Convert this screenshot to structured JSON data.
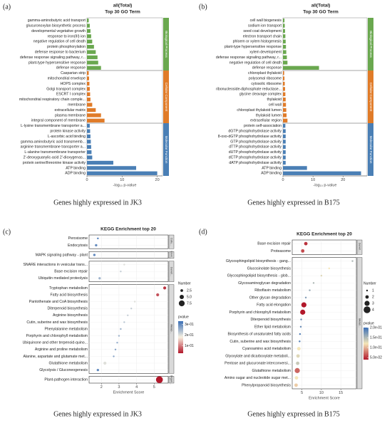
{
  "chart_data": [
    {
      "type": "bar",
      "panel_label": "(a)",
      "title": "all(Total)",
      "subtitle": "Top 30 GO Term",
      "xlabel": "-log₁₀ p-value",
      "caption": "Genes highly expressed in JK3",
      "xlim": [
        0,
        21.5
      ],
      "xticks": [
        0,
        10,
        20
      ],
      "groups": [
        {
          "label": "Biological Process",
          "color": "#6aa84f",
          "categories": [
            "gamma-aminobutyric acid transport",
            "glucuronoxylan biosynthetic process",
            "developmental vegetative growth",
            "response to iron(III) ion",
            "negative regulation of cell death",
            "protein phosphorylation",
            "defense response to bacterium",
            "defense response signaling pathway, r...",
            "plant-type hypersensitive response",
            "defense response"
          ],
          "values": [
            0.5,
            0.8,
            1.0,
            1.2,
            1.5,
            2.0,
            2.5,
            3.0,
            3.2,
            4.0
          ]
        },
        {
          "label": "Cellular Component",
          "color": "#e07b28",
          "categories": [
            "Casparian strip",
            "mitochondrial envelope",
            "HOPS complex",
            "Golgi transport complex",
            "ESCRT I complex",
            "mitochondrial respiratory chain comple...",
            "membrane",
            "extracellular matrix",
            "plasma membrane",
            "integral component of membrane"
          ],
          "values": [
            0.5,
            0.6,
            0.7,
            0.8,
            0.9,
            1.0,
            1.5,
            2.5,
            4.0,
            5.0
          ]
        },
        {
          "label": "Molecular Function",
          "color": "#4a7fb5",
          "categories": [
            "L-lysine transmembrane transporter a...",
            "protein kinase activity",
            "L-ascorbic acid binding",
            "gamma-aminobutyric acid transmemb...",
            "arginine transmembrane transporter a...",
            "L-alanine transmembrane transporter",
            "2'-deoxyguanylic-acid 2'-dioxygenas...",
            "protein serine/threonine kinase activity",
            "ATP binding",
            "ADP binding"
          ],
          "values": [
            0.8,
            0.9,
            1.0,
            1.1,
            1.2,
            1.3,
            1.5,
            7.5,
            14,
            20
          ]
        }
      ]
    },
    {
      "type": "bar",
      "panel_label": "(b)",
      "title": "all(Total)",
      "subtitle": "Top 30 GO Term",
      "xlabel": "-log₁₀ p-value",
      "caption": "Genes highly expressed in B175",
      "xlim": [
        0,
        28
      ],
      "xticks": [
        0,
        10,
        20
      ],
      "groups": [
        {
          "label": "Biological Process",
          "color": "#6aa84f",
          "categories": [
            "cell wall biogenesis",
            "sodium ion transport",
            "seed coat development",
            "electron transport chain",
            "phloem or xylem histogenesis",
            "plant-type hypersensitive response",
            "xylem development",
            "defense response signaling pathway, r...",
            "negative regulation of cell death",
            "defense response"
          ],
          "values": [
            0.5,
            0.6,
            0.7,
            0.8,
            0.9,
            1.0,
            1.1,
            1.3,
            1.5,
            12
          ]
        },
        {
          "label": "Cellular Component",
          "color": "#e07b28",
          "categories": [
            "chloroplast thylakoid",
            "polysomal ribosome",
            "cytosolic ribosome",
            "ribonucleoside-diphosphate reductase...",
            "glycine cleavage complex",
            "thylakoid",
            "cell wall",
            "chloroplast thylakoid lumen",
            "thylakoid lumen",
            "extracellular region"
          ],
          "values": [
            0.4,
            0.5,
            0.6,
            0.7,
            0.8,
            0.9,
            1.0,
            1.1,
            1.2,
            1.5
          ]
        },
        {
          "label": "Molecular Function",
          "color": "#4a7fb5",
          "categories": [
            "protein self-association",
            "dGTP phosphohydrolase activity",
            "8-oxo-dGTP phosphohydrolase activity",
            "GTP phosphohydrolase activity",
            "dTTP phosphohydrolase activity",
            "dUTP phosphohydrolase activity",
            "dCTP phosphohydrolase activity",
            "dATP phosphohydrolase activity",
            "ATP binding",
            "ADP binding"
          ],
          "values": [
            0.8,
            0.9,
            0.9,
            0.9,
            0.9,
            0.9,
            0.9,
            0.9,
            8,
            26
          ]
        }
      ]
    },
    {
      "type": "dot",
      "panel_label": "(c)",
      "title": "KEGG Enrichment top 20",
      "xlabel": "Enrichment Score",
      "caption": "Genes highly expressed in JK3",
      "xlim": [
        1.3,
        5.8
      ],
      "xticks": [
        2,
        3,
        4,
        5
      ],
      "size_legend": {
        "title": "Number",
        "lim": [
          1,
          9
        ],
        "ticks": [
          2.5,
          {
            "value": 5,
            "label": "5.0"
          },
          7.5
        ]
      },
      "colorbar": {
        "title": "pvalue",
        "lim": [
          0.03,
          0.33
        ],
        "colors": [
          "#b2182b",
          "#f7f0e0",
          "#3b6fb6"
        ],
        "ticks": [
          {
            "value": 0.3,
            "label": "3e-01"
          },
          {
            "value": 0.2,
            "label": "2e-01"
          },
          {
            "value": 0.1,
            "label": "1e-01"
          }
        ]
      },
      "facets": [
        {
          "label": "Cellu...",
          "categories": [
            "Peroxisome",
            "Endocytosis"
          ],
          "values": [
            1.8,
            1.7
          ],
          "counts": [
            1,
            2
          ],
          "pvalues": [
            0.32,
            0.3
          ]
        },
        {
          "label": "Envir...",
          "categories": [
            "MAPK signaling pathway - plant"
          ],
          "values": [
            1.6
          ],
          "counts": [
            2
          ],
          "pvalues": [
            0.3
          ]
        },
        {
          "label": "Genet...",
          "categories": [
            "SNARE interactions in vesicular trans...",
            "Base excision repair",
            "Ubiquitin mediated proteolysis"
          ],
          "values": [
            3.3,
            3.1,
            1.9
          ],
          "counts": [
            1,
            1,
            2
          ],
          "pvalues": [
            0.2,
            0.22,
            0.25
          ]
        },
        {
          "label": "Metab...",
          "categories": [
            "Tryptophan metabolism",
            "Fatty acid biosynthesis",
            "Pantothenate and CoA biosynthesis",
            "Diterpenoid biosynthesis",
            "Arginine biosynthesis",
            "Cutin, suberine and wax biosynthesis",
            "Phenylalanine metabolism",
            "Porphyrin and chlorophyll metabolism",
            "Ubiquinone and other terpenoid-quino...",
            "Arginine and proline metabolism",
            "Alanine, aspartate and glutamate met...",
            "Glutathione metabolism",
            "Glycolysis / Gluconeogenesis"
          ],
          "values": [
            5.6,
            5.2,
            3.9,
            3.7,
            3.5,
            3.3,
            3.1,
            3.0,
            2.9,
            2.8,
            2.7,
            2.2,
            1.8
          ],
          "counts": [
            3,
            3,
            1,
            1,
            1,
            1,
            1,
            1,
            1,
            1,
            1,
            3,
            2
          ],
          "pvalues": [
            0.05,
            0.07,
            0.2,
            0.22,
            0.22,
            0.23,
            0.25,
            0.25,
            0.26,
            0.27,
            0.27,
            0.2,
            0.3
          ]
        },
        {
          "label": "Organ...",
          "categories": [
            "Plant-pathogen interaction"
          ],
          "values": [
            5.3
          ],
          "counts": [
            9
          ],
          "pvalues": [
            0.03
          ]
        }
      ]
    },
    {
      "type": "dot",
      "panel_label": "(d)",
      "title": "KEGG Enrichment top 20",
      "xlabel": "Enrichment Score",
      "caption": "Genes highly expressed in B175",
      "xlim": [
        2.5,
        19
      ],
      "xticks": [
        5,
        10,
        15
      ],
      "size_legend": {
        "title": "Number",
        "lim": [
          1,
          4
        ],
        "ticks": [
          1,
          2,
          3,
          4
        ]
      },
      "colorbar": {
        "title": "pvalue",
        "lim": [
          0.04,
          0.2
        ],
        "colors": [
          "#b2182b",
          "#f5e6b8",
          "#3b6fb6"
        ],
        "ticks": [
          {
            "value": 0.2,
            "label": "2.0e-01"
          },
          {
            "value": 0.15,
            "label": "1.5e-01"
          },
          {
            "value": 0.1,
            "label": "1.0e-01"
          },
          {
            "value": 0.05,
            "label": "5.0e-02"
          }
        ]
      },
      "facets": [
        {
          "label": "Genet...",
          "categories": [
            "Base excision repair",
            "Proteasome"
          ],
          "values": [
            6,
            5.2
          ],
          "counts": [
            2,
            2
          ],
          "pvalues": [
            0.05,
            0.06
          ]
        },
        {
          "label": "Metab...",
          "categories": [
            "Glycosphingolipid biosynthesis - gang...",
            "Glucosinolate biosynthesis",
            "Glycosphingolipid biosynthesis - glob...",
            "Glycosaminoglycan degradation",
            "Riboflavin metabolism",
            "Other glycan degradation",
            "Fatty acid elongation",
            "Porphyrin and chlorophyll metabolism",
            "Diterpenoid biosynthesis",
            "Ether lipid metabolism",
            "Biosynthesis of unsaturated fatty acids",
            "Cutin, suberine and wax biosynthesis",
            "Cyanoamino acid metabolism",
            "Glyoxylate and dicarboxylate metaboli...",
            "Pentose and glucuronate interconversi...",
            "Glutathione metabolism",
            "Amino sugar and nucleotide sugar met...",
            "Phenylpropanoid biosynthesis"
          ],
          "values": [
            18,
            12,
            10,
            8,
            7,
            6,
            5.5,
            5.2,
            4.8,
            4.7,
            4.5,
            4.4,
            4.2,
            4.0,
            3.9,
            3.8,
            3.6,
            3.5
          ],
          "counts": [
            1,
            1,
            1,
            1,
            1,
            1,
            3,
            3,
            1,
            1,
            1,
            1,
            2,
            2,
            2,
            3,
            2,
            2
          ],
          "pvalues": [
            0.15,
            0.12,
            0.13,
            0.15,
            0.16,
            0.17,
            0.04,
            0.04,
            0.18,
            0.18,
            0.19,
            0.19,
            0.12,
            0.13,
            0.14,
            0.07,
            0.12,
            0.11
          ]
        }
      ]
    }
  ]
}
